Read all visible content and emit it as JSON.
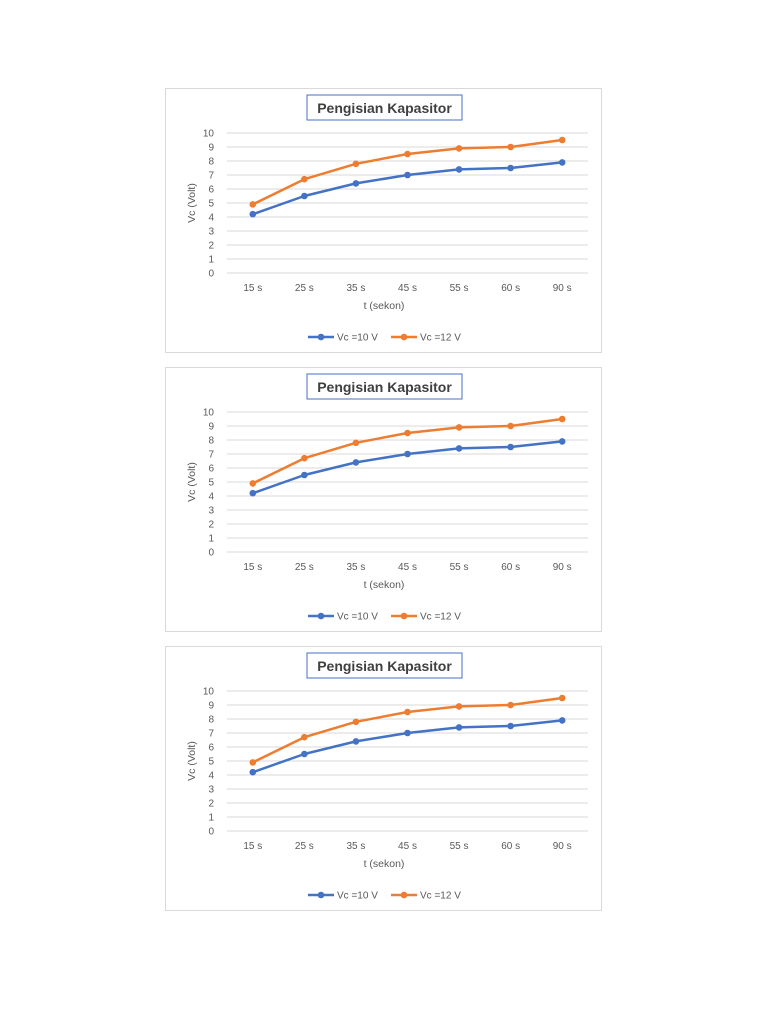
{
  "chart_data": [
    {
      "type": "line",
      "title": "Pengisian Kapasitor",
      "xlabel": "t (sekon)",
      "ylabel": "Vc (Volt)",
      "categories": [
        "15 s",
        "25 s",
        "35 s",
        "45 s",
        "55 s",
        "60 s",
        "90 s"
      ],
      "ylim": [
        0,
        10
      ],
      "yticks": [
        "0",
        "1",
        "2",
        "3",
        "4",
        "5",
        "6",
        "7",
        "8",
        "9",
        "10"
      ],
      "grid": true,
      "legend": "bottom",
      "series": [
        {
          "name": "Vc =10 V",
          "color": "#4472c4",
          "values": [
            4.2,
            5.5,
            6.4,
            7.0,
            7.4,
            7.5,
            7.9
          ]
        },
        {
          "name": "Vc =12 V",
          "color": "#ed7d31",
          "values": [
            4.9,
            6.7,
            7.8,
            8.5,
            8.9,
            9.0,
            9.5
          ]
        }
      ]
    },
    {
      "type": "line",
      "title": "Pengisian Kapasitor",
      "xlabel": "t (sekon)",
      "ylabel": "Vc (Volt)",
      "categories": [
        "15 s",
        "25 s",
        "35 s",
        "45 s",
        "55 s",
        "60 s",
        "90 s"
      ],
      "ylim": [
        0,
        10
      ],
      "yticks": [
        "0",
        "1",
        "2",
        "3",
        "4",
        "5",
        "6",
        "7",
        "8",
        "9",
        "10"
      ],
      "grid": true,
      "legend": "bottom",
      "series": [
        {
          "name": "Vc =10 V",
          "color": "#4472c4",
          "values": [
            4.2,
            5.5,
            6.4,
            7.0,
            7.4,
            7.5,
            7.9
          ]
        },
        {
          "name": "Vc =12 V",
          "color": "#ed7d31",
          "values": [
            4.9,
            6.7,
            7.8,
            8.5,
            8.9,
            9.0,
            9.5
          ]
        }
      ]
    },
    {
      "type": "line",
      "title": "Pengisian Kapasitor",
      "xlabel": "t (sekon)",
      "ylabel": "Vc (Volt)",
      "categories": [
        "15 s",
        "25 s",
        "35 s",
        "45 s",
        "55 s",
        "60 s",
        "90 s"
      ],
      "ylim": [
        0,
        10
      ],
      "yticks": [
        "0",
        "1",
        "2",
        "3",
        "4",
        "5",
        "6",
        "7",
        "8",
        "9",
        "10"
      ],
      "grid": true,
      "legend": "bottom",
      "series": [
        {
          "name": "Vc =10 V",
          "color": "#4472c4",
          "values": [
            4.2,
            5.5,
            6.4,
            7.0,
            7.4,
            7.5,
            7.9
          ]
        },
        {
          "name": "Vc =12 V",
          "color": "#ed7d31",
          "values": [
            4.9,
            6.7,
            7.8,
            8.5,
            8.9,
            9.0,
            9.5
          ]
        }
      ]
    }
  ]
}
